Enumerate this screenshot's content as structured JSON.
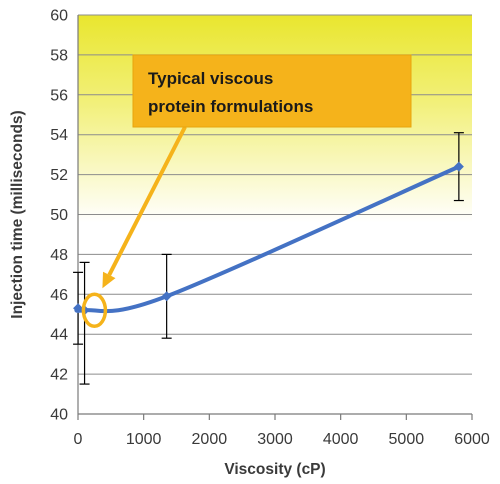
{
  "chart_data": {
    "type": "scatter",
    "xlabel": "Viscosity (cP)",
    "ylabel": "Injection time (milliseconds)",
    "xlim": [
      0,
      6000
    ],
    "ylim": [
      40,
      60
    ],
    "x_ticks": [
      0,
      1000,
      2000,
      3000,
      4000,
      5000,
      6000
    ],
    "y_ticks": [
      40,
      42,
      44,
      46,
      48,
      50,
      52,
      54,
      56,
      58,
      60
    ],
    "grid": "horizontal",
    "series": [
      {
        "color": "#4472c4",
        "points": [
          {
            "x": 1,
            "y": 45.3,
            "err_low": 43.5,
            "err_high": 47.1
          },
          {
            "x": 100,
            "y": 45.2,
            "err_low": 41.5,
            "err_high": 47.6
          },
          {
            "x": 1350,
            "y": 45.9,
            "err_low": 43.8,
            "err_high": 48.0
          },
          {
            "x": 5800,
            "y": 52.4,
            "err_low": 50.7,
            "err_high": 54.1
          }
        ]
      }
    ],
    "annotation": {
      "text_lines": [
        "Typical viscous",
        "protein formulations"
      ],
      "target_x": 250,
      "target_y": 45.2,
      "box_color": "#f5b31b",
      "arrow_color": "#f5b31b"
    },
    "background_gradient": {
      "top_color": "#e9e62e",
      "bottom_color": "#ffffff"
    }
  }
}
